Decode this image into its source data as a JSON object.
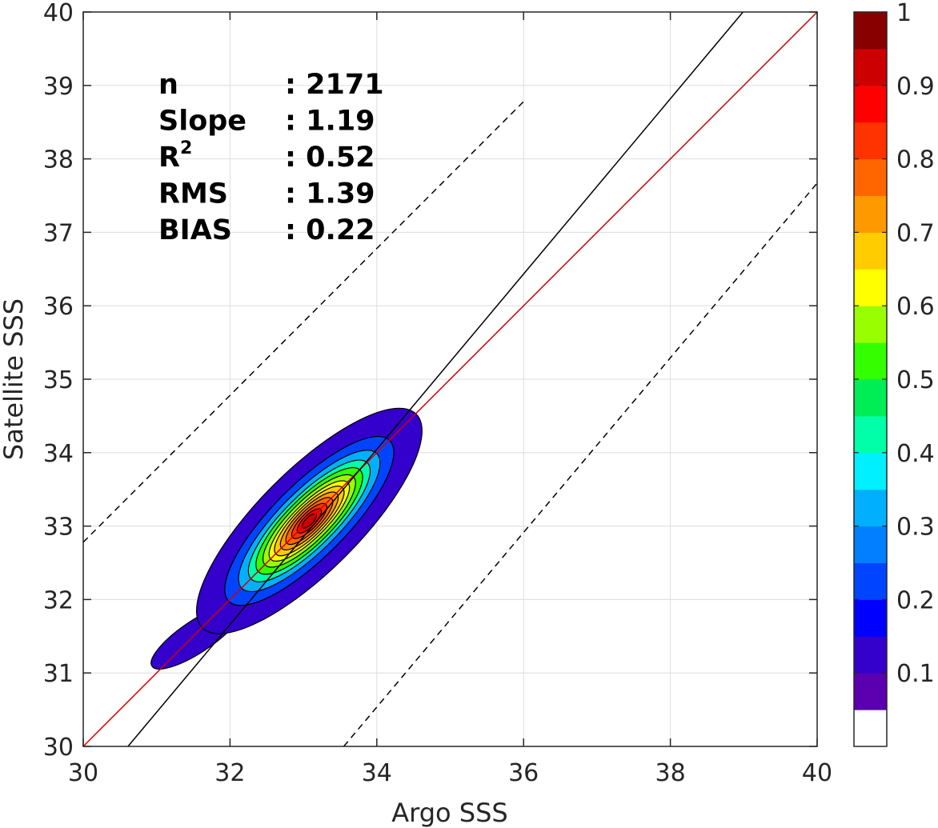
{
  "chart_data": {
    "type": "contour density scatter",
    "xlabel": "Argo SSS",
    "ylabel": "Satellite SSS",
    "xlim": [
      30,
      40
    ],
    "ylim": [
      30,
      40
    ],
    "x_ticks": [
      "30",
      "32",
      "34",
      "36",
      "38",
      "40"
    ],
    "y_ticks": [
      "30",
      "31",
      "32",
      "33",
      "34",
      "35",
      "36",
      "37",
      "38",
      "39",
      "40"
    ],
    "grid": true,
    "stats": [
      {
        "label": "n",
        "value": ": 2171"
      },
      {
        "label": "Slope",
        "value": ": 1.19"
      },
      {
        "label": "R",
        "sup": "2",
        "value": ": 0.52"
      },
      {
        "label": "RMS",
        "value": ": 1.39"
      },
      {
        "label": "BIAS",
        "value": ": 0.22"
      }
    ],
    "lines": {
      "one_to_one": {
        "color": "#d40000",
        "from": [
          30,
          30
        ],
        "to": [
          40,
          40
        ]
      },
      "regression_fit": {
        "color": "#000000",
        "from": [
          30.61,
          30
        ],
        "to": [
          38.99,
          40
        ]
      },
      "upper_bound": {
        "color": "#000000",
        "style": "dashed",
        "from": [
          30,
          32.78
        ],
        "to": [
          36,
          38.78
        ]
      },
      "lower_bound": {
        "color": "#000000",
        "style": "dashed",
        "from": [
          33.55,
          30
        ],
        "to": [
          40,
          37.67
        ]
      }
    },
    "density": {
      "center": [
        33.08,
        33.07
      ],
      "major_axis_angle_deg": 45,
      "levels": [
        {
          "level": 0.1,
          "semi_major": 2.06,
          "semi_minor": 0.69
        },
        {
          "level": 0.2,
          "semi_major": 1.55,
          "semi_minor": 0.5
        },
        {
          "level": 0.3,
          "semi_major": 1.3,
          "semi_minor": 0.41
        },
        {
          "level": 0.4,
          "semi_major": 1.12,
          "semi_minor": 0.35
        },
        {
          "level": 0.5,
          "semi_major": 0.98,
          "semi_minor": 0.31
        },
        {
          "level": 0.55,
          "semi_major": 0.85,
          "semi_minor": 0.27
        },
        {
          "level": 0.6,
          "semi_major": 0.74,
          "semi_minor": 0.23
        },
        {
          "level": 0.65,
          "semi_major": 0.64,
          "semi_minor": 0.2
        },
        {
          "level": 0.7,
          "semi_major": 0.53,
          "semi_minor": 0.17
        },
        {
          "level": 0.75,
          "semi_major": 0.43,
          "semi_minor": 0.14
        },
        {
          "level": 0.8,
          "semi_major": 0.32,
          "semi_minor": 0.11
        },
        {
          "level": 0.85,
          "semi_major": 0.22,
          "semi_minor": 0.08
        },
        {
          "level": 0.9,
          "semi_major": 0.13,
          "semi_minor": 0.05
        }
      ],
      "tail": {
        "from": [
          31.1,
          31.2
        ],
        "to": [
          32.0,
          31.8
        ],
        "level": 0.1
      }
    },
    "colorbar": {
      "range": [
        0,
        1
      ],
      "tick_labels": [
        "0.1",
        "0.2",
        "0.3",
        "0.4",
        "0.5",
        "0.6",
        "0.7",
        "0.8",
        "0.9",
        "1"
      ],
      "colors": [
        "#ffffff",
        "#5a00b0",
        "#3300cc",
        "#0000ff",
        "#0044ff",
        "#0080ff",
        "#00b0ff",
        "#00f0ff",
        "#00ffa8",
        "#00ee55",
        "#33ff00",
        "#99ff00",
        "#ffff00",
        "#ffcc00",
        "#ff9900",
        "#ff6600",
        "#ff3300",
        "#ff0000",
        "#cc0000",
        "#880000"
      ]
    }
  }
}
